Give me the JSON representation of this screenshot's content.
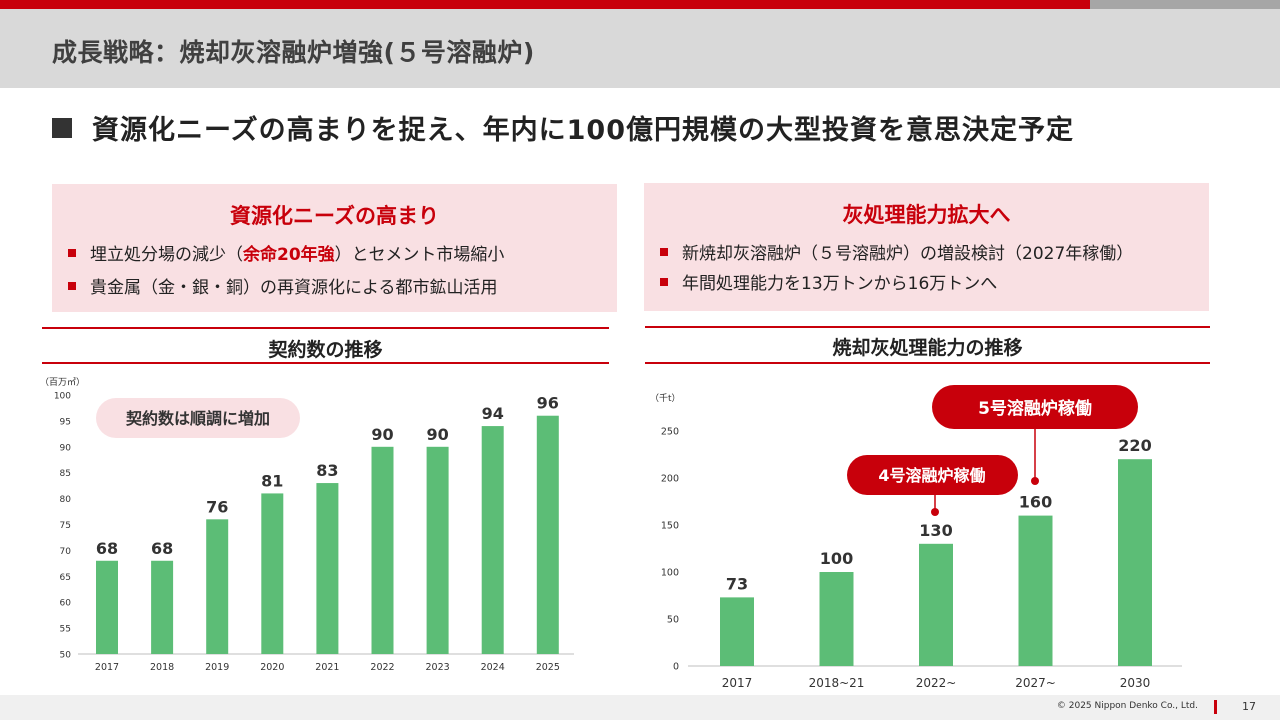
{
  "slide": {
    "title": "成長戦略：焼却灰溶融炉増強(５号溶融炉)",
    "headline": "資源化ニーズの高まりを捉え、年内に100億円規模の大型投資を意思決定予定"
  },
  "left_box": {
    "title": "資源化ニーズの高まり",
    "item1_pre": "埋立処分場の減少（",
    "item1_highlight": "余命20年強",
    "item1_post": "）とセメント市場縮小",
    "item2": "貴金属（金・銀・銅）の再資源化による都市鉱山活用"
  },
  "right_box": {
    "title": "灰処理能力拡大へ",
    "item1": "新焼却灰溶融炉（５号溶融炉）の増設検討（2027年稼働）",
    "item2": "年間処理能力を13万トンから16万トンへ"
  },
  "contracts_chart": {
    "section_title": "契約数の推移",
    "unit": "（百万㎥）",
    "callout": "契約数は順調に増加"
  },
  "ash_chart": {
    "section_title": "焼却灰処理能力の推移",
    "unit": "（千t）",
    "callout_furnace4": "4号溶融炉稼働",
    "callout_furnace5": "5号溶融炉稼働"
  },
  "colors": {
    "accent": "#c8000b",
    "bar": "#5cbd76",
    "box_bg": "#f9e0e3"
  },
  "chart_data": [
    {
      "type": "bar",
      "title": "契約数の推移",
      "ylabel": "（百万㎥）",
      "xlabel": "",
      "categories": [
        "2017",
        "2018",
        "2019",
        "2020",
        "2021",
        "2022",
        "2023",
        "2024",
        "2025"
      ],
      "values": [
        68,
        68,
        76,
        81,
        83,
        90,
        90,
        94,
        96
      ],
      "ylim": [
        50,
        100
      ],
      "yticks": [
        50,
        55,
        60,
        65,
        70,
        75,
        80,
        85,
        90,
        95,
        100
      ],
      "grid": false,
      "annotations": [
        "契約数は順調に増加"
      ]
    },
    {
      "type": "bar",
      "title": "焼却灰処理能力の推移",
      "ylabel": "（千t）",
      "xlabel": "",
      "categories": [
        "2017",
        "2018~21",
        "2022~",
        "2027~",
        "2030"
      ],
      "values": [
        73,
        100,
        130,
        160,
        220
      ],
      "ylim": [
        0,
        250
      ],
      "yticks": [
        0,
        50,
        100,
        150,
        200,
        250
      ],
      "grid": false,
      "annotations": [
        "4号溶融炉稼働",
        "5号溶融炉稼働"
      ]
    }
  ],
  "footer": {
    "copyright": "© 2025 Nippon Denko Co., Ltd.",
    "page": "17"
  }
}
